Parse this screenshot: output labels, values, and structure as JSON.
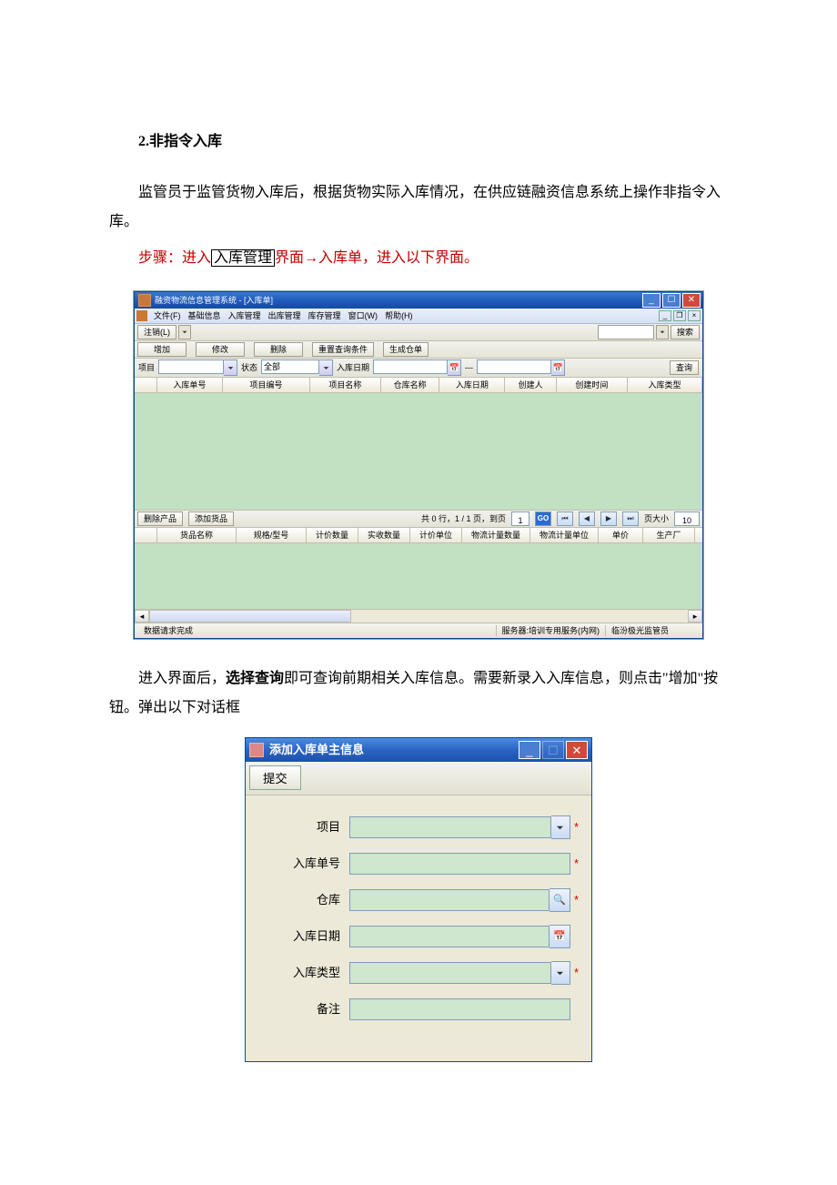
{
  "doc": {
    "heading": "2.非指令入库",
    "p1": "监管员于监管货物入库后，根据货物实际入库情况，在供应链融资信息系统上操作非指令入库。",
    "step_prefix": "步骤：进入",
    "step_box": "入库管理",
    "step_suffix": "界面→入库单，进入以下界面。",
    "p2a": "进入界面后，",
    "p2b": "选择查询",
    "p2c": "即可查询前期相关入库信息。需要新录入入库信息，则点击\"增加\"按钮。弹出以下对话框"
  },
  "app": {
    "title": "融资物流信息管理系统  - [入库单]",
    "menus": [
      "文件(F)",
      "基础信息",
      "入库管理",
      "出库管理",
      "库存管理",
      "窗口(W)",
      "帮助(H)"
    ],
    "toolbar1": {
      "logout": "注销(L)",
      "search": "搜索"
    },
    "toolbar2": {
      "add": "增加",
      "edit": "修改",
      "del": "删除",
      "reset": "重置查询条件",
      "gen": "生成仓单"
    },
    "filter": {
      "label_project": "项目",
      "label_status": "状态",
      "status_value": "全部",
      "label_date": "入库日期",
      "dash": "---",
      "query": "查询"
    },
    "grid1_cols": [
      "",
      "入库单号",
      "项目编号",
      "项目名称",
      "仓库名称",
      "入库日期",
      "创建人",
      "创建时间",
      "入库类型"
    ],
    "grid1_widths": [
      24,
      72,
      96,
      78,
      64,
      72,
      56,
      78,
      82
    ],
    "midbar": {
      "delprod": "删除产品",
      "addprod": "添加货品",
      "pager_text": "共 0 行，1 / 1 页，到页",
      "page_value": "1",
      "go": "GO",
      "pagesize_label": "页大小",
      "pagesize_value": "10"
    },
    "grid2_cols": [
      "",
      "货品名称",
      "规格/型号",
      "计价数量",
      "实收数量",
      "计价单位",
      "物流计量数量",
      "物流计量单位",
      "单价",
      "生产厂"
    ],
    "grid2_widths": [
      24,
      86,
      76,
      56,
      56,
      56,
      74,
      74,
      48,
      56
    ],
    "status": {
      "left": "数据请求完成",
      "mid": "服务器:培训专用服务(内网)",
      "right": "临汾极光监管员"
    }
  },
  "dialog": {
    "title": "添加入库单主信息",
    "submit": "提交",
    "rows": {
      "project": "项目",
      "order_no": "入库单号",
      "warehouse": "仓库",
      "date": "入库日期",
      "type": "入库类型",
      "remark": "备注"
    }
  }
}
